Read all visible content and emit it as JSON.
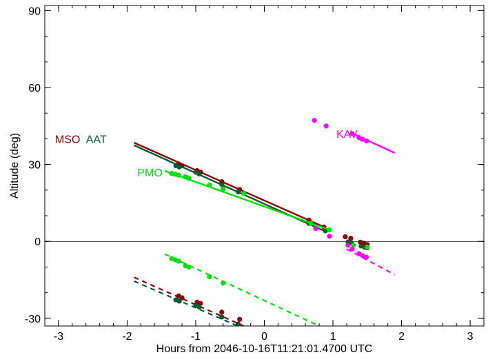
{
  "chart_data": {
    "type": "scatter",
    "xlabel": "Hours from 2046-10-16T11:21:01.4700 UTC",
    "ylabel": "Altitude (deg)",
    "xlim": [
      -3.2,
      3.2
    ],
    "ylim": [
      -33,
      92
    ],
    "xticks": [
      -3,
      -2,
      -1,
      0,
      1,
      2,
      3
    ],
    "yticks": [
      -30,
      0,
      30,
      60,
      90
    ],
    "xtick_labels": [
      "-3",
      "-2",
      "-1",
      "0",
      "1",
      "2",
      "3"
    ],
    "ytick_labels": [
      "-30",
      "0",
      "30",
      "60",
      "90"
    ],
    "reference_line_y": 0,
    "series": [
      {
        "name": "MSO",
        "color": "#8b0000",
        "label_position": [
          -3.05,
          40
        ],
        "solid_line": [
          [
            -1.9,
            38.5
          ],
          [
            0.88,
            5.5
          ]
        ],
        "dashed_line": [
          [
            -1.9,
            -14.0
          ],
          [
            -0.3,
            -33.0
          ]
        ],
        "points": [
          [
            -1.25,
            30.2
          ],
          [
            -1.2,
            29.5
          ],
          [
            -0.98,
            27.6
          ],
          [
            -0.93,
            27.0
          ],
          [
            -0.62,
            23.3
          ],
          [
            -0.36,
            20.2
          ],
          [
            0.65,
            8.3
          ],
          [
            0.87,
            5.6
          ],
          [
            1.18,
            1.8
          ],
          [
            1.26,
            1.2
          ],
          [
            1.4,
            -0.3
          ],
          [
            1.45,
            -0.7
          ],
          [
            1.5,
            -1.2
          ],
          [
            -1.25,
            -21.3
          ],
          [
            -1.2,
            -22.0
          ],
          [
            -0.98,
            -23.7
          ],
          [
            -0.93,
            -24.2
          ],
          [
            -0.62,
            -27.6
          ],
          [
            -0.36,
            -30.4
          ]
        ]
      },
      {
        "name": "AAT",
        "color": "#005a32",
        "label_position": [
          -2.6,
          40
        ],
        "solid_line": [
          [
            -1.9,
            37.5
          ],
          [
            0.88,
            4.0
          ]
        ],
        "dashed_line": [
          [
            -1.9,
            -15.5
          ],
          [
            -0.3,
            -34.0
          ]
        ],
        "points": [
          [
            -1.29,
            29.5
          ],
          [
            -1.24,
            29.0
          ],
          [
            -1.0,
            27.0
          ],
          [
            -0.95,
            26.3
          ],
          [
            -0.62,
            22.2
          ],
          [
            -0.38,
            19.3
          ],
          [
            0.65,
            7.0
          ],
          [
            0.89,
            4.1
          ],
          [
            1.22,
            -0.2
          ],
          [
            1.27,
            -0.6
          ],
          [
            1.41,
            -1.8
          ],
          [
            1.46,
            -2.3
          ],
          [
            1.5,
            -2.5
          ],
          [
            -1.29,
            -22.8
          ],
          [
            -1.24,
            -23.3
          ],
          [
            -1.0,
            -25.0
          ],
          [
            -0.95,
            -25.6
          ],
          [
            -0.62,
            -29.5
          ],
          [
            -0.38,
            -32.2
          ]
        ]
      },
      {
        "name": "PMO",
        "color": "#00e000",
        "label_position": [
          -1.85,
          27
        ],
        "solid_line": [
          [
            -1.45,
            27.5
          ],
          [
            0.95,
            4.5
          ]
        ],
        "dashed_line": [
          [
            -1.45,
            -5.0
          ],
          [
            0.8,
            -33.0
          ]
        ],
        "points": [
          [
            -1.35,
            26.5
          ],
          [
            -1.3,
            26.2
          ],
          [
            -1.25,
            25.8
          ],
          [
            -1.15,
            25.2
          ],
          [
            -1.1,
            24.6
          ],
          [
            -0.8,
            22.0
          ],
          [
            -0.6,
            20.5
          ],
          [
            -0.3,
            18.7
          ],
          [
            0.68,
            7.0
          ],
          [
            0.95,
            4.5
          ],
          [
            1.3,
            -1.5
          ],
          [
            1.5,
            -2.2
          ],
          [
            -1.35,
            -6.7
          ],
          [
            -1.3,
            -7.2
          ],
          [
            -1.25,
            -7.7
          ],
          [
            -1.15,
            -9.5
          ],
          [
            -1.1,
            -10.0
          ],
          [
            -0.8,
            -13.8
          ],
          [
            -0.6,
            -16.3
          ]
        ]
      },
      {
        "name": "KAV",
        "color": "#ff00ff",
        "label_position": [
          1.05,
          42
        ],
        "solid_line": [
          [
            1.25,
            42.5
          ],
          [
            1.9,
            34.5
          ]
        ],
        "dashed_line": [
          [
            1.2,
            -3.0
          ],
          [
            1.9,
            -13.0
          ]
        ],
        "points": [
          [
            0.73,
            47.2
          ],
          [
            0.9,
            45.0
          ],
          [
            1.28,
            42.0
          ],
          [
            1.38,
            40.5
          ],
          [
            1.43,
            39.8
          ],
          [
            1.49,
            39.2
          ],
          [
            0.75,
            5.0
          ],
          [
            0.95,
            2.0
          ],
          [
            1.22,
            -1.5
          ],
          [
            1.28,
            -3.0
          ],
          [
            1.38,
            -4.8
          ],
          [
            1.43,
            -5.5
          ],
          [
            1.49,
            -6.2
          ]
        ]
      }
    ]
  }
}
